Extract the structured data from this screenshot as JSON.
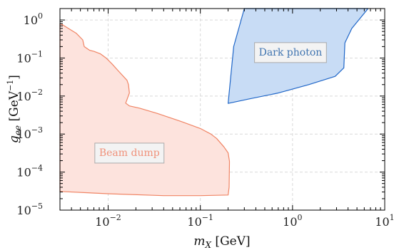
{
  "chart_data": {
    "type": "area",
    "title": "",
    "xlabel": "m_X [GeV]",
    "ylabel": "g_ee [GeV^-1]",
    "xscale": "log",
    "yscale": "log",
    "xlim": [
      0.003,
      10
    ],
    "ylim": [
      1e-05,
      2
    ],
    "grid": true,
    "x_ticks": [
      {
        "value": 0.01,
        "mantissa": "10",
        "exp": "−2"
      },
      {
        "value": 0.1,
        "mantissa": "10",
        "exp": "−1"
      },
      {
        "value": 1,
        "mantissa": "10",
        "exp": "0"
      },
      {
        "value": 10,
        "mantissa": "10",
        "exp": "1"
      }
    ],
    "y_ticks": [
      {
        "value": 1e-05,
        "mantissa": "10",
        "exp": "−5"
      },
      {
        "value": 0.0001,
        "mantissa": "10",
        "exp": "−4"
      },
      {
        "value": 0.001,
        "mantissa": "10",
        "exp": "−3"
      },
      {
        "value": 0.01,
        "mantissa": "10",
        "exp": "−2"
      },
      {
        "value": 0.1,
        "mantissa": "10",
        "exp": "−1"
      },
      {
        "value": 1,
        "mantissa": "10",
        "exp": "0"
      }
    ],
    "series": [
      {
        "name": "Beam dump",
        "fill": "#fde3dd",
        "stroke": "#f08464",
        "label_color": "#f0917a",
        "label_at": [
          0.017,
          0.00033
        ],
        "points": [
          [
            0.003,
            0.8
          ],
          [
            0.0032,
            0.75
          ],
          [
            0.0037,
            0.6
          ],
          [
            0.0045,
            0.45
          ],
          [
            0.0053,
            0.3
          ],
          [
            0.0055,
            0.2
          ],
          [
            0.0063,
            0.16
          ],
          [
            0.007,
            0.15
          ],
          [
            0.0082,
            0.13
          ],
          [
            0.0095,
            0.1
          ],
          [
            0.011,
            0.07
          ],
          [
            0.013,
            0.045
          ],
          [
            0.016,
            0.026
          ],
          [
            0.0166,
            0.02
          ],
          [
            0.017,
            0.012
          ],
          [
            0.0155,
            0.0065
          ],
          [
            0.017,
            0.0055
          ],
          [
            0.022,
            0.0048
          ],
          [
            0.034,
            0.0035
          ],
          [
            0.06,
            0.0022
          ],
          [
            0.1,
            0.0014
          ],
          [
            0.13,
            0.001
          ],
          [
            0.15,
            0.00077
          ],
          [
            0.18,
            0.00046
          ],
          [
            0.2,
            0.00032
          ],
          [
            0.205,
            0.00022
          ],
          [
            0.207,
            0.00019
          ],
          [
            0.205,
            4e-05
          ],
          [
            0.2,
            2.5e-05
          ],
          [
            0.1,
            2.4e-05
          ],
          [
            0.04,
            2.4e-05
          ],
          [
            0.01,
            2.7e-05
          ],
          [
            0.003,
            3.1e-05
          ]
        ]
      },
      {
        "name": "Dark photon",
        "fill": "#c8dcf5",
        "stroke": "#1f66c8",
        "label_color": "#3f74b0",
        "label_at": [
          0.95,
          0.145
        ],
        "points": [
          [
            0.3,
            2
          ],
          [
            6.6,
            2
          ],
          [
            4.4,
            0.6
          ],
          [
            3.7,
            0.25
          ],
          [
            3.6,
            0.055
          ],
          [
            2.9,
            0.033
          ],
          [
            1.5,
            0.02
          ],
          [
            0.7,
            0.012
          ],
          [
            0.33,
            0.0083
          ],
          [
            0.2,
            0.0064
          ],
          [
            0.23,
            0.2
          ],
          [
            0.3,
            2
          ]
        ]
      }
    ]
  }
}
